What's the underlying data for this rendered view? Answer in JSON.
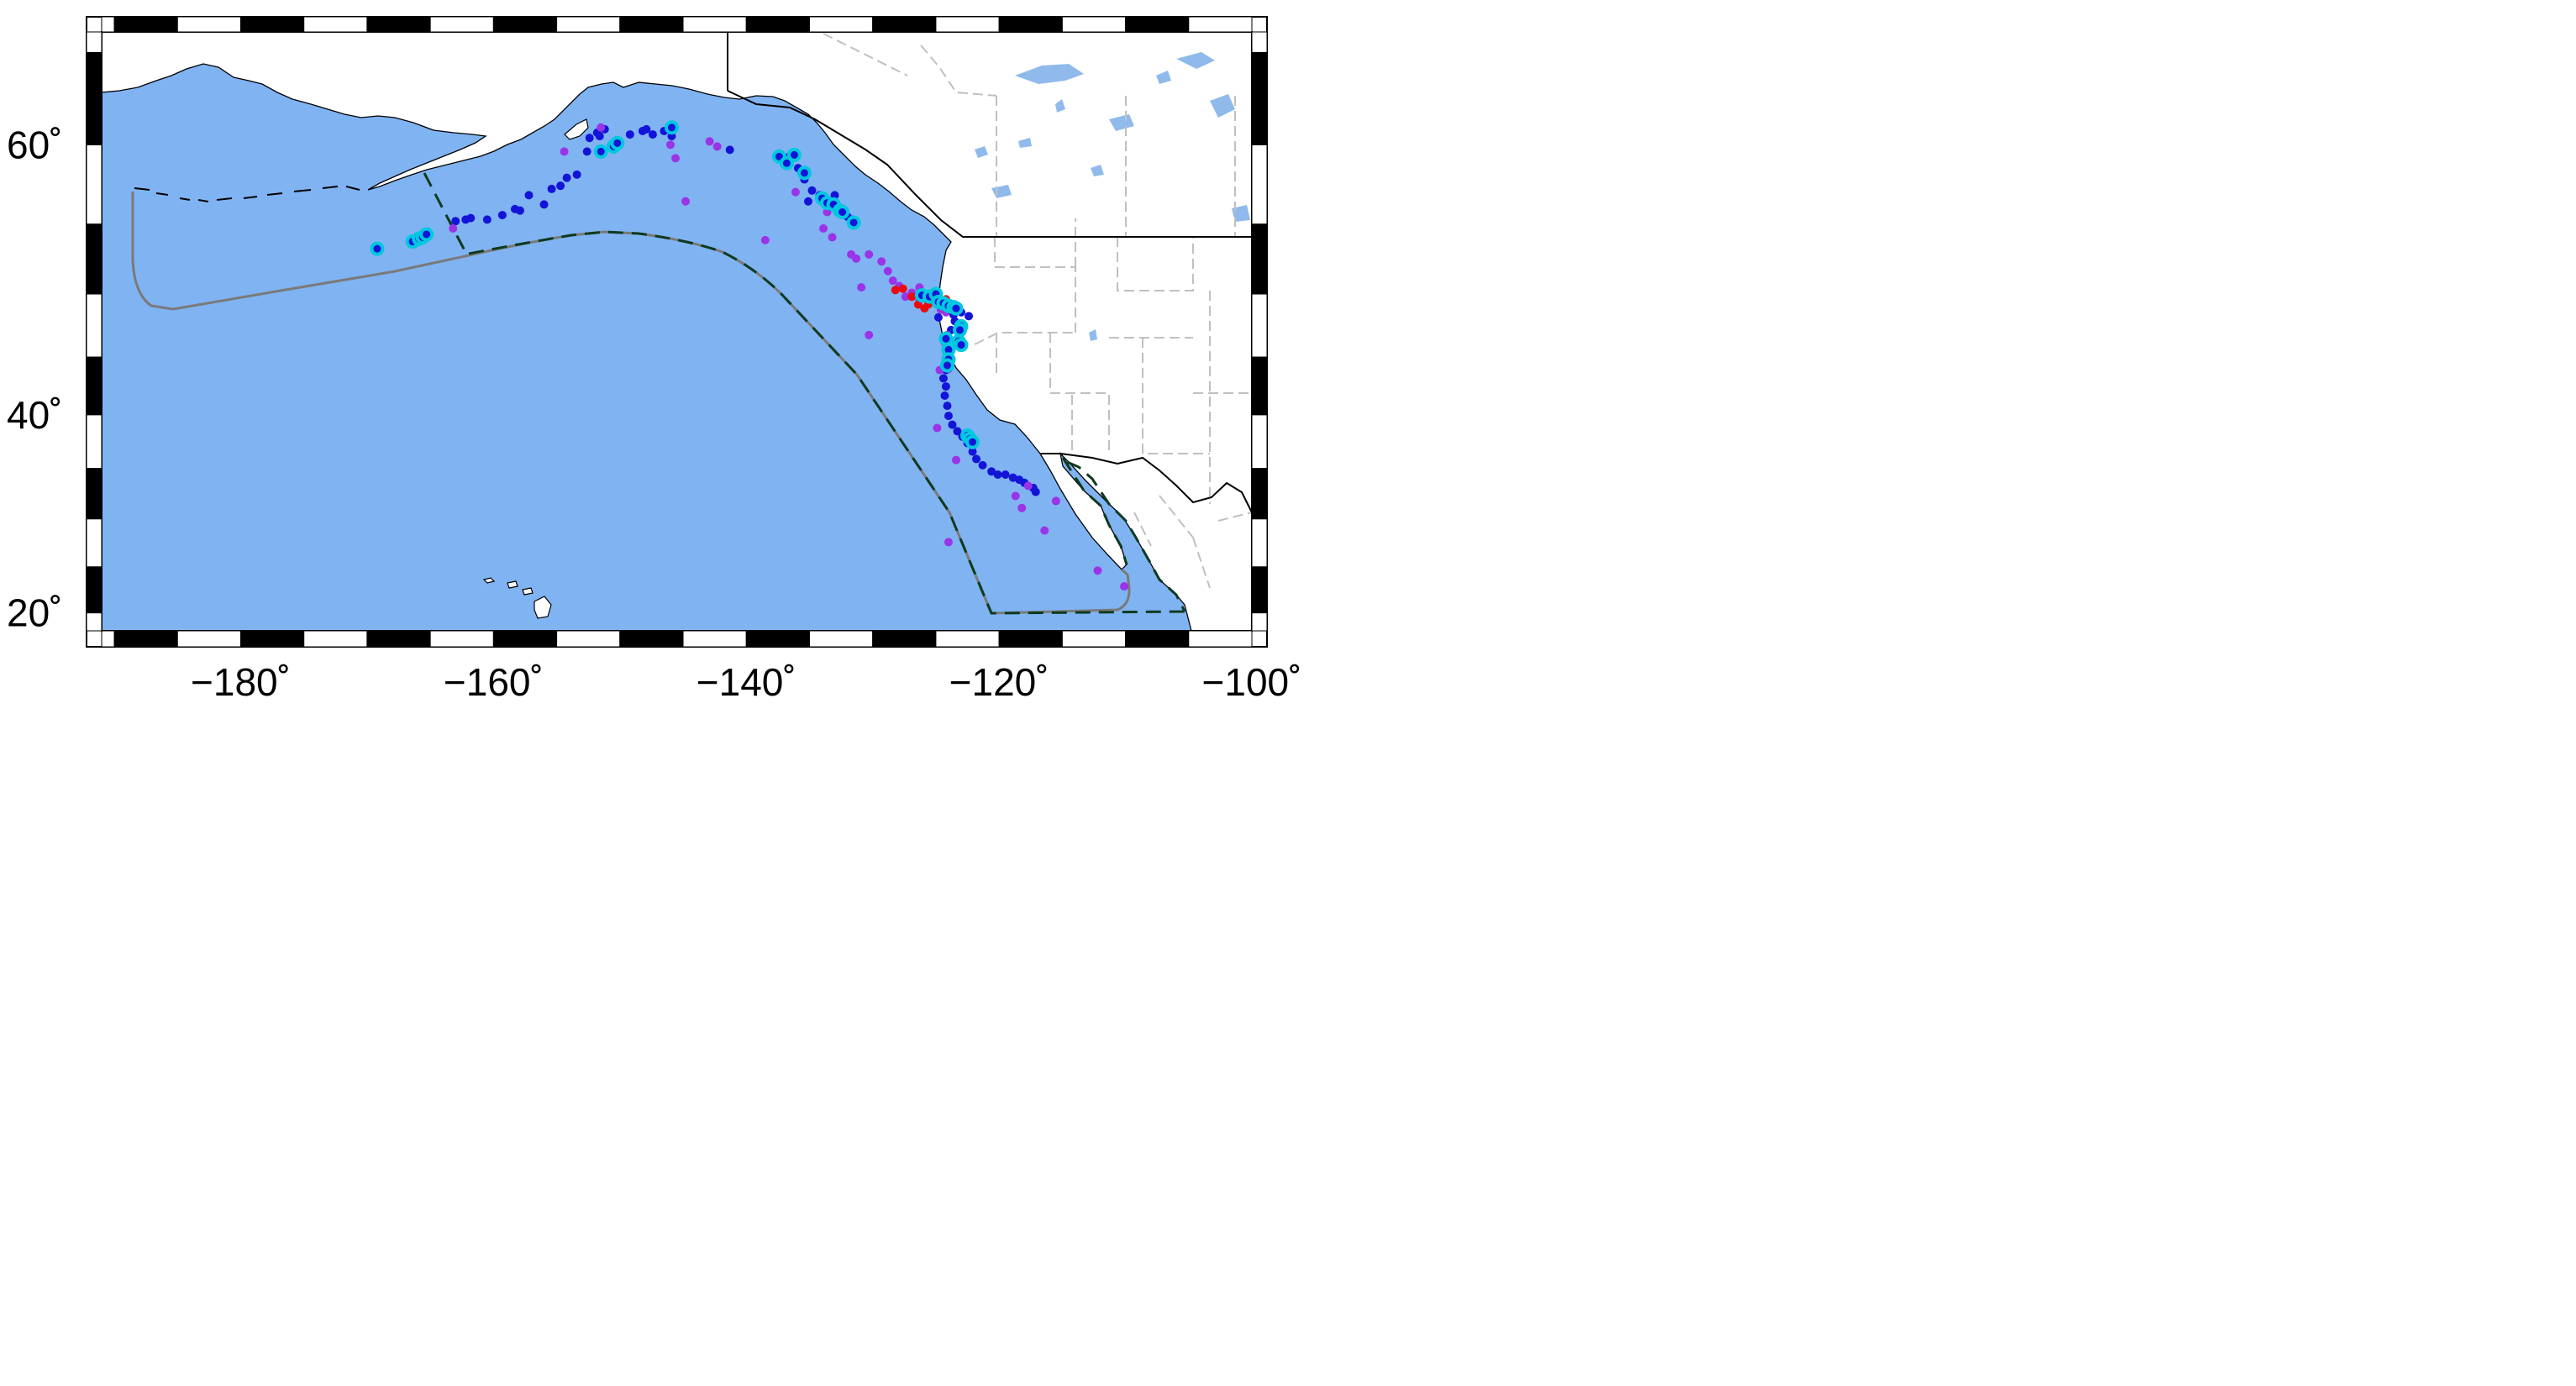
{
  "map": {
    "projection": "mercator",
    "lon_range": [
      -191,
      -100
    ],
    "lat_range": [
      18,
      66
    ],
    "colors": {
      "ocean": "#80b3f2",
      "land": "#ffffff",
      "lakes": "#8fbaeb",
      "coastline": "#000000",
      "border": "#000000",
      "state_border": "#c0c0c0",
      "region_solid": "#7a7a7a",
      "region_dashed": "#0e3a1f",
      "frame_dark": "#000000",
      "frame_light": "#ffffff"
    },
    "x_ticks": [
      {
        "lon": -180,
        "label": "−180˚"
      },
      {
        "lon": -160,
        "label": "−160˚"
      },
      {
        "lon": -140,
        "label": "−140˚"
      },
      {
        "lon": -120,
        "label": "−120˚"
      },
      {
        "lon": -100,
        "label": "−100˚"
      }
    ],
    "y_ticks": [
      {
        "lat": 20,
        "label": "20˚"
      },
      {
        "lat": 40,
        "label": "40˚"
      },
      {
        "lat": 60,
        "label": "60˚"
      }
    ],
    "point_groups": [
      {
        "color": "#1414d8",
        "ring": false,
        "points": [
          [
            -156.0,
            56.3
          ],
          [
            -157.2,
            56.9
          ],
          [
            -158.3,
            56.0
          ],
          [
            -159.3,
            55.6
          ],
          [
            -161.8,
            55.4
          ],
          [
            -162.2,
            55.3
          ],
          [
            -163.0,
            55.2
          ],
          [
            -160.5,
            55.3
          ],
          [
            -157.9,
            55.9
          ],
          [
            -155.4,
            57.3
          ],
          [
            -154.7,
            57.5
          ],
          [
            -154.2,
            58.0
          ],
          [
            -153.4,
            58.2
          ],
          [
            -152.6,
            59.6
          ],
          [
            -152.4,
            60.4
          ],
          [
            -151.8,
            60.7
          ],
          [
            -151.2,
            60.9
          ],
          [
            -151.6,
            60.5
          ],
          [
            -149.2,
            60.6
          ],
          [
            -148.2,
            60.8
          ],
          [
            -147.9,
            60.9
          ],
          [
            -147.4,
            60.6
          ],
          [
            -146.5,
            60.8
          ],
          [
            -145.9,
            60.5
          ],
          [
            -141.3,
            59.7
          ],
          [
            -136.6,
            59.3
          ],
          [
            -135.9,
            58.6
          ],
          [
            -135.4,
            57.9
          ],
          [
            -134.8,
            57.2
          ],
          [
            -134.2,
            56.9
          ],
          [
            -133.6,
            56.6
          ],
          [
            -132.6,
            56.1
          ],
          [
            -132.0,
            55.5
          ],
          [
            -131.6,
            55.3
          ],
          [
            -135.1,
            56.5
          ],
          [
            -133.0,
            56.9
          ],
          [
            -123.6,
            48.4
          ],
          [
            -123.5,
            47.9
          ],
          [
            -123.8,
            47.2
          ],
          [
            -124.1,
            46.3
          ],
          [
            -124.2,
            45.5
          ],
          [
            -124.1,
            44.7
          ],
          [
            -124.2,
            43.9
          ],
          [
            -124.4,
            43.2
          ],
          [
            -124.2,
            42.5
          ],
          [
            -124.3,
            41.7
          ],
          [
            -124.1,
            40.8
          ],
          [
            -124.0,
            39.9
          ],
          [
            -123.7,
            39.1
          ],
          [
            -123.3,
            38.5
          ],
          [
            -122.9,
            38.0
          ],
          [
            -122.5,
            37.4
          ],
          [
            -122.1,
            36.6
          ],
          [
            -121.8,
            35.9
          ],
          [
            -121.3,
            35.3
          ],
          [
            -120.6,
            34.7
          ],
          [
            -120.1,
            34.4
          ],
          [
            -119.5,
            34.4
          ],
          [
            -118.9,
            34.1
          ],
          [
            -118.4,
            33.9
          ],
          [
            -118.0,
            33.6
          ],
          [
            -117.3,
            33.1
          ],
          [
            -117.1,
            32.7
          ],
          [
            -124.8,
            48.2
          ],
          [
            -123.0,
            48.6
          ],
          [
            -122.4,
            48.3
          ]
        ]
      },
      {
        "color": "#9b33e6",
        "ring": false,
        "points": [
          [
            -163.2,
            54.7
          ],
          [
            -154.4,
            59.6
          ],
          [
            -151.5,
            61.0
          ],
          [
            -146.0,
            60.0
          ],
          [
            -145.6,
            59.2
          ],
          [
            -144.8,
            56.5
          ],
          [
            -142.9,
            60.2
          ],
          [
            -142.3,
            59.9
          ],
          [
            -138.5,
            53.9
          ],
          [
            -136.1,
            57.1
          ],
          [
            -133.6,
            55.8
          ],
          [
            -133.9,
            54.7
          ],
          [
            -133.2,
            54.1
          ],
          [
            -131.7,
            52.9
          ],
          [
            -131.3,
            52.6
          ],
          [
            -130.3,
            52.9
          ],
          [
            -129.3,
            52.4
          ],
          [
            -128.8,
            51.7
          ],
          [
            -128.4,
            51.0
          ],
          [
            -127.9,
            50.6
          ],
          [
            -126.9,
            50.1
          ],
          [
            -126.3,
            49.6
          ],
          [
            -125.4,
            49.4
          ],
          [
            -124.6,
            48.8
          ],
          [
            -124.2,
            48.6
          ],
          [
            -130.9,
            50.5
          ],
          [
            -130.3,
            46.8
          ],
          [
            -126.3,
            50.5
          ],
          [
            -127.4,
            49.8
          ],
          [
            -124.1,
            46.8
          ],
          [
            -124.9,
            38.8
          ],
          [
            -123.4,
            35.8
          ],
          [
            -118.7,
            32.3
          ],
          [
            -118.2,
            31.1
          ],
          [
            -117.7,
            33.3
          ],
          [
            -115.5,
            31.8
          ],
          [
            -116.4,
            28.8
          ],
          [
            -124.0,
            27.6
          ],
          [
            -112.2,
            24.6
          ],
          [
            -110.1,
            22.9
          ],
          [
            -124.0,
            44.0
          ],
          [
            -124.3,
            46.2
          ],
          [
            -124.7,
            43.9
          ]
        ]
      },
      {
        "color": "#ee0a10",
        "ring": false,
        "points": [
          [
            -128.2,
            50.3
          ],
          [
            -127.6,
            50.4
          ],
          [
            -126.9,
            49.8
          ],
          [
            -126.4,
            49.2
          ],
          [
            -125.9,
            48.9
          ],
          [
            -125.6,
            49.2
          ],
          [
            -125.0,
            49.3
          ],
          [
            -124.2,
            49.6
          ]
        ]
      },
      {
        "color": "#00c8e0",
        "ring": true,
        "points": [
          [
            -169.2,
            53.3
          ],
          [
            -166.4,
            53.8
          ],
          [
            -165.9,
            54.0
          ],
          [
            -165.6,
            54.1
          ],
          [
            -165.3,
            54.3
          ],
          [
            -151.5,
            59.6
          ],
          [
            -150.5,
            59.9
          ],
          [
            -150.2,
            60.1
          ],
          [
            -145.9,
            61.0
          ],
          [
            -137.4,
            59.3
          ],
          [
            -136.8,
            58.9
          ],
          [
            -136.2,
            59.4
          ],
          [
            -135.4,
            58.3
          ],
          [
            -134.0,
            56.7
          ],
          [
            -133.6,
            56.4
          ],
          [
            -133.1,
            56.3
          ],
          [
            -132.6,
            55.9
          ],
          [
            -132.4,
            55.8
          ],
          [
            -131.5,
            55.1
          ],
          [
            -126.1,
            49.9
          ],
          [
            -125.5,
            49.8
          ],
          [
            -125.0,
            50.0
          ],
          [
            -124.8,
            49.4
          ],
          [
            -124.4,
            49.3
          ],
          [
            -124.0,
            49.1
          ],
          [
            -123.6,
            49.0
          ],
          [
            -123.4,
            48.9
          ],
          [
            -123.0,
            47.5
          ],
          [
            -123.1,
            47.2
          ],
          [
            -123.2,
            46.3
          ],
          [
            -123.0,
            46.0
          ],
          [
            -124.2,
            46.5
          ],
          [
            -124.0,
            45.6
          ],
          [
            -124.0,
            44.8
          ],
          [
            -124.1,
            44.3
          ],
          [
            -122.5,
            38.1
          ],
          [
            -122.3,
            37.8
          ],
          [
            -122.1,
            37.5
          ]
        ]
      }
    ]
  }
}
